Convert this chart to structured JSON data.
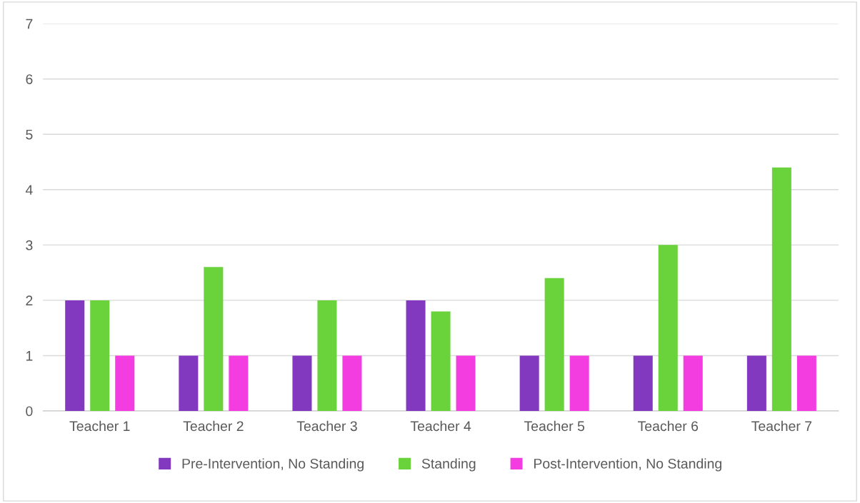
{
  "chart_data": {
    "type": "bar",
    "categories": [
      "Teacher 1",
      "Teacher 2",
      "Teacher 3",
      "Teacher 4",
      "Teacher 5",
      "Teacher 6",
      "Teacher 7"
    ],
    "series": [
      {
        "name": "Pre-Intervention, No Standing",
        "color": "#8338c0",
        "values": [
          2,
          1,
          1,
          2,
          1,
          1,
          1
        ]
      },
      {
        "name": "Standing",
        "color": "#6ad23a",
        "values": [
          2,
          2.6,
          2,
          1.8,
          2.4,
          3,
          4.4
        ]
      },
      {
        "name": "Post-Intervention, No Standing",
        "color": "#f43de0",
        "values": [
          1,
          1,
          1,
          1,
          1,
          1,
          1
        ]
      }
    ],
    "ylim": [
      0,
      7
    ],
    "yticks": [
      0,
      1,
      2,
      3,
      4,
      5,
      6,
      7
    ],
    "grid": "y",
    "legend": "bottom"
  }
}
